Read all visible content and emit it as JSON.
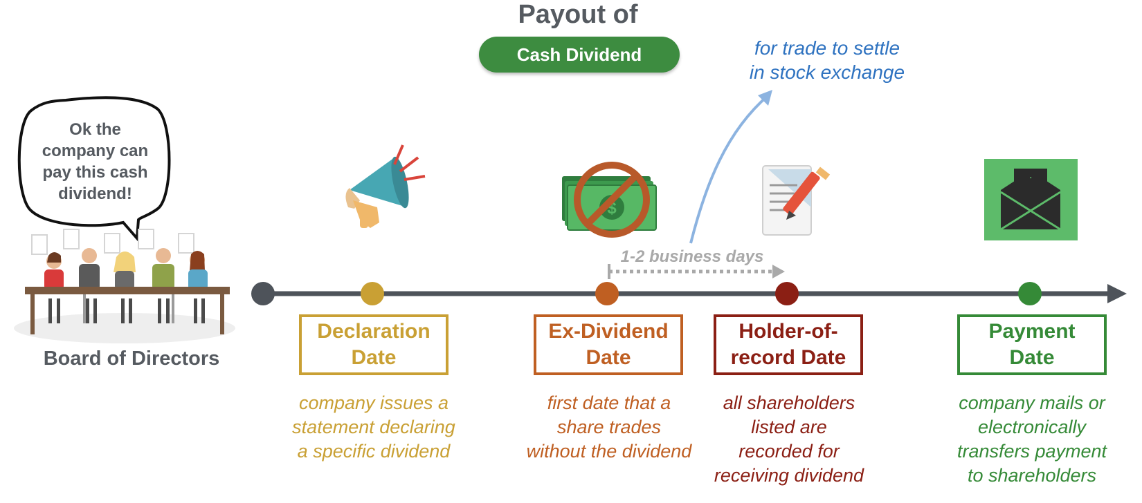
{
  "header": {
    "title": "Payout of",
    "pill": "Cash Dividend"
  },
  "annotation": {
    "settle_line1": "for trade to settle",
    "settle_line2": "in stock exchange",
    "business_days": "1-2 business days"
  },
  "board": {
    "label": "Board of Directors",
    "speech": [
      "Ok the",
      "company can",
      "pay this cash",
      "dividend!"
    ]
  },
  "dates": [
    {
      "title": [
        "Declaration",
        "Date"
      ],
      "desc": [
        "company issues a",
        "statement declaring",
        "a specific dividend"
      ],
      "color": "#c9a034",
      "icon": "megaphone-icon"
    },
    {
      "title": [
        "Ex-Dividend",
        "Date"
      ],
      "desc": [
        "first date that a",
        "share trades",
        "without the dividend"
      ],
      "color": "#bf5f22",
      "icon": "no-cash-icon"
    },
    {
      "title": [
        "Holder-of-",
        "record Date"
      ],
      "desc": [
        "all shareholders",
        "listed are",
        "recorded for",
        "receiving dividend"
      ],
      "color": "#8b1f14",
      "icon": "document-signing-icon"
    },
    {
      "title": [
        "Payment",
        "Date"
      ],
      "desc": [
        "company mails or",
        "electronically",
        "transfers payment",
        "to shareholders"
      ],
      "color": "#358a37",
      "icon": "envelope-money-icon"
    }
  ],
  "colors": {
    "timeline": "#4e535a",
    "start_dot": "#4e535a",
    "settle_arrow": "#8cb3e0",
    "business_days": "#a9a9a9",
    "pill": "#3d8c40"
  }
}
